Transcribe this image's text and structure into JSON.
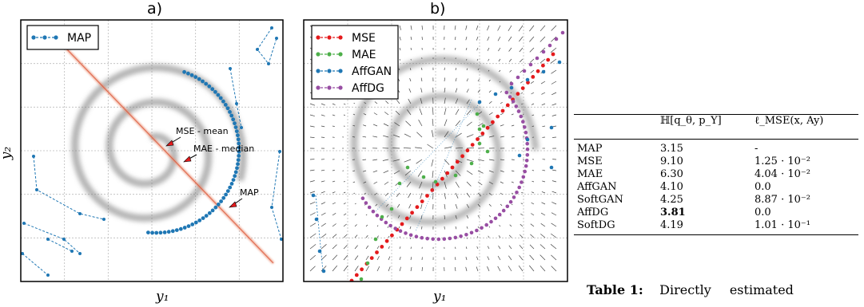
{
  "chart_data": [
    {
      "type": "scatter",
      "title": "a)",
      "xlabel": "y₁",
      "ylabel": "y₂",
      "grid": true,
      "legend_position": "top-left",
      "series": [
        {
          "name": "MAP",
          "color": "#1f77b4"
        }
      ],
      "annotations": [
        "MSE - mean",
        "MAE - median",
        "MAP"
      ]
    },
    {
      "type": "scatter",
      "title": "b)",
      "xlabel": "y₁",
      "ylabel": "",
      "grid": true,
      "legend_position": "top-left",
      "series": [
        {
          "name": "MSE",
          "color": "#e41a1c"
        },
        {
          "name": "MAE",
          "color": "#4daf4a"
        },
        {
          "name": "AffGAN",
          "color": "#1f77b4"
        },
        {
          "name": "AffDG",
          "color": "#984ea3"
        }
      ]
    },
    {
      "type": "table",
      "columns": [
        "",
        "ℍ[q_θ, p_Y]",
        "ℓ_MSE(x, Ay)"
      ],
      "rows": [
        {
          "name": "MAP",
          "entropy": "3.15",
          "mse": "-"
        },
        {
          "name": "MSE",
          "entropy": "9.10",
          "mse": "1.25 · 10⁻²"
        },
        {
          "name": "MAE",
          "entropy": "6.30",
          "mse": "4.04 · 10⁻²"
        },
        {
          "name": "AffGAN",
          "entropy": "4.10",
          "mse": "0.0"
        },
        {
          "name": "SoftGAN",
          "entropy": "4.25",
          "mse": "8.87 · 10⁻²"
        },
        {
          "name": "AffDG",
          "entropy": "3.81",
          "mse": "0.0"
        },
        {
          "name": "SoftDG",
          "entropy": "4.19",
          "mse": "1.01 · 10⁻¹"
        }
      ],
      "bold": [
        "AffDG.entropy"
      ]
    }
  ],
  "caption": {
    "label": "Table 1:",
    "text": "Directly estimated"
  }
}
